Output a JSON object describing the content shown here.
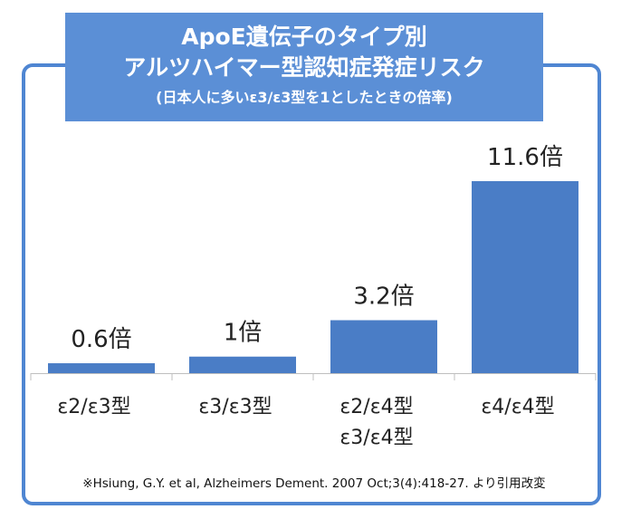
{
  "header": {
    "title_line1": "ApoE遺伝子のタイプ別",
    "title_line2": "アルツハイマー型認知症発症リスク",
    "subtitle": "(日本人に多いε3/ε3型を1としたときの倍率)"
  },
  "categories_display": [
    {
      "line1": "ε2/ε3型",
      "line2": ""
    },
    {
      "line1": "ε3/ε3型",
      "line2": ""
    },
    {
      "line1": "ε2/ε4型",
      "line2": "ε3/ε4型"
    },
    {
      "line1": "ε4/ε4型",
      "line2": ""
    }
  ],
  "footer": {
    "source": "※Hsiung, G.Y. et al, Alzheimers Dement. 2007 Oct;3(4):418-27. より引用改変"
  },
  "colors": {
    "bar": "#4a7dc6",
    "frame": "#4f86d2",
    "title_bg": "#5b8fd6"
  },
  "chart_data": {
    "type": "bar",
    "title": "ApoE遺伝子のタイプ別 アルツハイマー型認知症発症リスク",
    "subtitle": "(日本人に多いε3/ε3型を1としたときの倍率)",
    "categories": [
      "ε2/ε3型",
      "ε3/ε3型",
      "ε2/ε4型 ε3/ε4型",
      "ε4/ε4型"
    ],
    "values": [
      0.6,
      1,
      3.2,
      11.6
    ],
    "data_labels": [
      "0.6倍",
      "1倍",
      "3.2倍",
      "11.6倍"
    ],
    "xlabel": "",
    "ylabel": "",
    "ylim": [
      0,
      11.6
    ],
    "grid": false,
    "legend": "none"
  }
}
